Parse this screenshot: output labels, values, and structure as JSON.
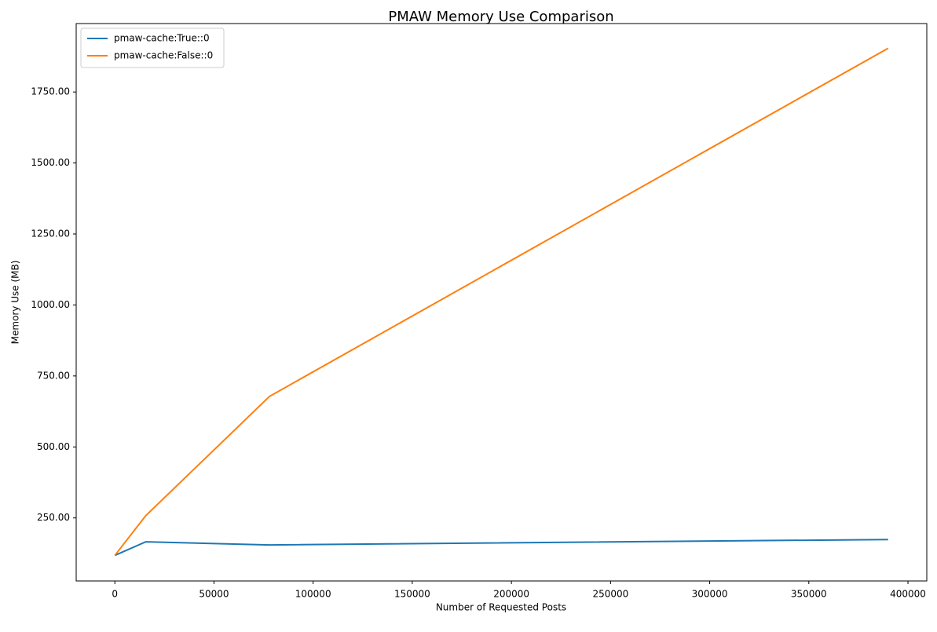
{
  "chart_data": {
    "type": "line",
    "title": "PMAW Memory Use Comparison",
    "x_label": "Number of Requested Posts",
    "y_label": "Memory Use (MB)",
    "x": [
      0,
      15600,
      78000,
      390000
    ],
    "series": [
      {
        "name": "pmaw-cache:True::0",
        "color": "#1f77b4",
        "values": [
          118,
          166,
          155,
          174
        ]
      },
      {
        "name": "pmaw-cache:False::0",
        "color": "#ff7f0e",
        "values": [
          118,
          258,
          678,
          1904
        ]
      }
    ],
    "xlim": [
      -19500,
      409500
    ],
    "xticks": [
      0,
      50000,
      100000,
      150000,
      200000,
      250000,
      300000,
      350000,
      400000
    ],
    "ylim": [
      28,
      1991
    ],
    "yticks": [
      {
        "value": 250,
        "label": "250.00"
      },
      {
        "value": 500,
        "label": "500.00"
      },
      {
        "value": 750,
        "label": "750.00"
      },
      {
        "value": 1000,
        "label": "1000.00"
      },
      {
        "value": 1250,
        "label": "1250.00"
      },
      {
        "value": 1500,
        "label": "1500.00"
      },
      {
        "value": 1750,
        "label": "1750.00"
      }
    ],
    "legend": "upper left"
  }
}
